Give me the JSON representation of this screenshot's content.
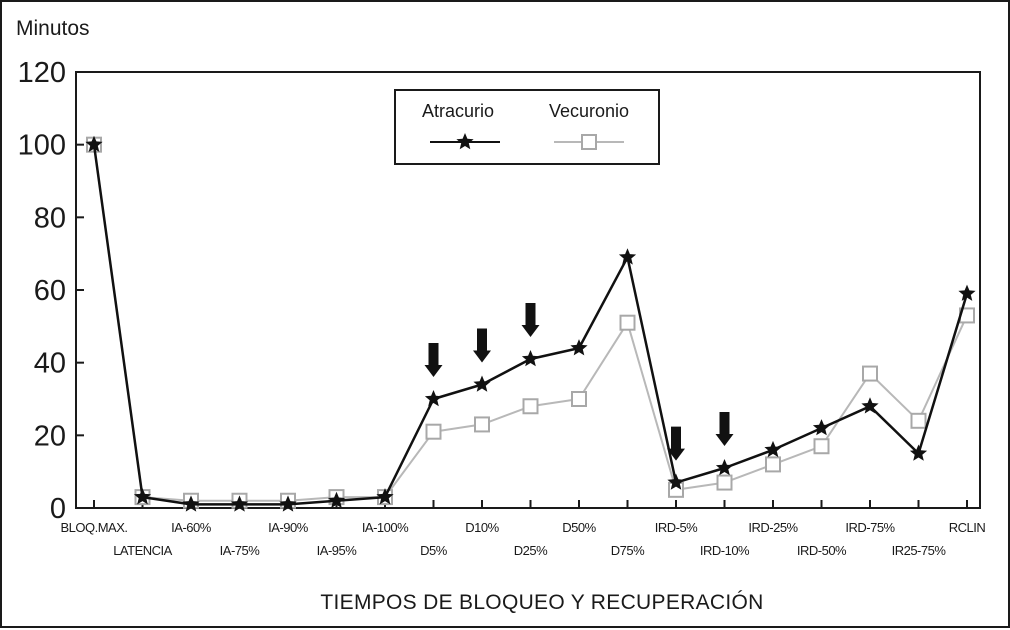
{
  "chart_data": {
    "type": "line",
    "ylabel": "Minutos",
    "xlabel": "TIEMPOS DE BLOQUEO Y RECUPERACIÓN",
    "ylim": [
      0,
      120
    ],
    "yticks": [
      0,
      20,
      40,
      60,
      80,
      100,
      120
    ],
    "grid": false,
    "legend_position": "top-center",
    "categories": [
      "BLOQ.MAX.",
      "LATENCIA",
      "IA-60%",
      "IA-75%",
      "IA-90%",
      "IA-95%",
      "IA-100%",
      "D5%",
      "D10%",
      "D25%",
      "D50%",
      "D75%",
      "IRD-5%",
      "IRD-10%",
      "IRD-25%",
      "IRD-50%",
      "IRD-75%",
      "IR25-75%",
      "RCLIN"
    ],
    "series": [
      {
        "name": "Atracurio",
        "color": "#111111",
        "marker": "star",
        "values": [
          100,
          3,
          1,
          1,
          1,
          2,
          3,
          30,
          34,
          41,
          44,
          69,
          7,
          11,
          16,
          22,
          28,
          15,
          59
        ]
      },
      {
        "name": "Vecuronio",
        "color": "#b8b8b8",
        "marker": "square-open",
        "values": [
          100,
          3,
          2,
          2,
          2,
          3,
          3,
          21,
          23,
          28,
          30,
          51,
          5,
          7,
          12,
          17,
          37,
          24,
          53
        ]
      }
    ],
    "annotations": {
      "type": "down-arrow",
      "categories": [
        "D5%",
        "D10%",
        "D25%",
        "IRD-5%",
        "IRD-10%"
      ]
    }
  }
}
